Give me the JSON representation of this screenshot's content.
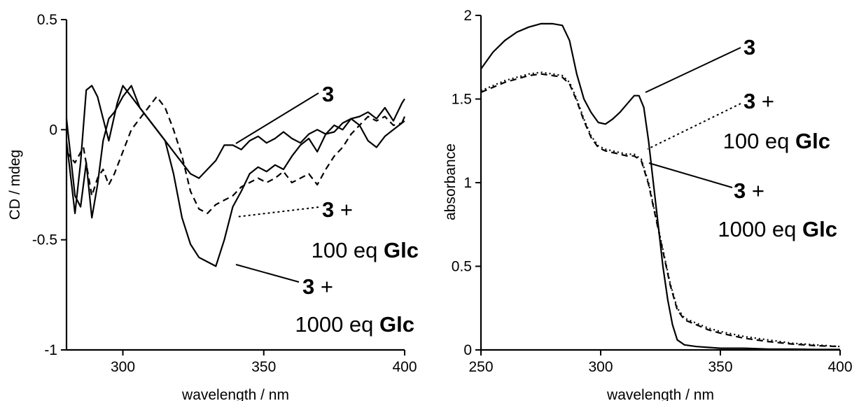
{
  "chart_data": [
    {
      "type": "line",
      "xlabel": "wavelength / nm",
      "ylabel": "CD / mdeg",
      "xlim": [
        280,
        400
      ],
      "ylim": [
        -1,
        0.5
      ],
      "xticks": [
        "300",
        "350",
        "400"
      ],
      "yticks": [
        "0.5",
        "0",
        "-0.5",
        "-1"
      ],
      "grid": false,
      "series": [
        {
          "name": "3",
          "style": "solid",
          "x": [
            280,
            283,
            285,
            287,
            289,
            291,
            293,
            295,
            298,
            300,
            303,
            306,
            309,
            312,
            315,
            318,
            321,
            324,
            327,
            330,
            333,
            336,
            339,
            342,
            345,
            348,
            351,
            354,
            357,
            360,
            363,
            366,
            369,
            372,
            375,
            378,
            381,
            384,
            387,
            390,
            393,
            396,
            399,
            400
          ],
          "y": [
            -0.05,
            -0.38,
            -0.15,
            0.18,
            0.2,
            0.15,
            0.05,
            -0.05,
            0.12,
            0.2,
            0.15,
            0.1,
            0.05,
            0.0,
            -0.05,
            -0.1,
            -0.15,
            -0.2,
            -0.22,
            -0.18,
            -0.14,
            -0.07,
            -0.07,
            -0.09,
            -0.05,
            -0.03,
            -0.06,
            -0.04,
            -0.01,
            -0.04,
            -0.06,
            -0.02,
            0.0,
            -0.02,
            -0.01,
            0.03,
            0.05,
            0.06,
            0.08,
            0.05,
            0.1,
            0.04,
            0.12,
            0.14
          ]
        },
        {
          "name": "3 + 100 eq Glc",
          "style": "dashed",
          "x": [
            280,
            283,
            286,
            289,
            291,
            293,
            295,
            297,
            300,
            303,
            306,
            309,
            312,
            315,
            318,
            321,
            324,
            327,
            330,
            333,
            336,
            339,
            342,
            345,
            348,
            351,
            354,
            357,
            360,
            363,
            366,
            369,
            372,
            375,
            378,
            381,
            384,
            387,
            390,
            393,
            396,
            399,
            400
          ],
          "y": [
            -0.1,
            -0.15,
            -0.08,
            -0.3,
            -0.22,
            -0.18,
            -0.25,
            -0.2,
            -0.1,
            0.0,
            0.05,
            0.1,
            0.15,
            0.1,
            0.0,
            -0.12,
            -0.28,
            -0.36,
            -0.38,
            -0.34,
            -0.32,
            -0.3,
            -0.26,
            -0.24,
            -0.22,
            -0.24,
            -0.22,
            -0.19,
            -0.24,
            -0.22,
            -0.2,
            -0.25,
            -0.18,
            -0.12,
            -0.08,
            -0.02,
            0.02,
            0.06,
            0.04,
            0.06,
            0.02,
            0.03,
            0.04
          ]
        },
        {
          "name": "3 + 1000 eq Glc",
          "style": "solid",
          "x": [
            280,
            283,
            285,
            287,
            289,
            291,
            293,
            295,
            297,
            300,
            303,
            306,
            309,
            312,
            315,
            318,
            321,
            324,
            327,
            330,
            333,
            336,
            339,
            342,
            345,
            348,
            351,
            354,
            357,
            360,
            363,
            366,
            369,
            372,
            375,
            378,
            381,
            384,
            387,
            390,
            393,
            396,
            399,
            400
          ],
          "y": [
            0.05,
            -0.3,
            -0.35,
            -0.15,
            -0.4,
            -0.25,
            -0.05,
            0.05,
            0.08,
            0.15,
            0.2,
            0.1,
            0.05,
            0.0,
            -0.05,
            -0.2,
            -0.4,
            -0.52,
            -0.58,
            -0.6,
            -0.62,
            -0.5,
            -0.35,
            -0.28,
            -0.2,
            -0.17,
            -0.19,
            -0.16,
            -0.18,
            -0.12,
            -0.07,
            -0.04,
            -0.1,
            -0.02,
            0.02,
            0.0,
            0.05,
            0.02,
            -0.05,
            -0.08,
            -0.03,
            0.0,
            0.03,
            0.06
          ]
        }
      ],
      "annotations": [
        {
          "number": "3",
          "rest": "",
          "line2_pre": "",
          "line2_bold": ""
        },
        {
          "number": "3",
          "rest": " +",
          "line2_pre": "100 eq ",
          "line2_bold": "Glc"
        },
        {
          "number": "3",
          "rest": " +",
          "line2_pre": "1000 eq ",
          "line2_bold": "Glc"
        }
      ]
    },
    {
      "type": "line",
      "xlabel": "wavelength / nm",
      "ylabel": "absorbance",
      "xlim": [
        250,
        400
      ],
      "ylim": [
        0,
        2
      ],
      "xticks": [
        "250",
        "300",
        "350",
        "400"
      ],
      "yticks": [
        "2",
        "1.5",
        "1",
        "0.5",
        "0"
      ],
      "grid": false,
      "series": [
        {
          "name": "3",
          "style": "solid",
          "x": [
            250,
            255,
            260,
            265,
            270,
            275,
            280,
            284,
            287,
            290,
            293,
            296,
            299,
            302,
            305,
            308,
            311,
            314,
            316,
            318,
            320,
            322,
            324,
            326,
            328,
            330,
            332,
            335,
            340,
            350,
            360,
            370,
            380,
            390,
            400
          ],
          "y": [
            1.68,
            1.78,
            1.85,
            1.9,
            1.93,
            1.95,
            1.95,
            1.94,
            1.85,
            1.65,
            1.5,
            1.42,
            1.36,
            1.35,
            1.38,
            1.42,
            1.47,
            1.52,
            1.52,
            1.45,
            1.25,
            1.0,
            0.75,
            0.5,
            0.3,
            0.15,
            0.06,
            0.03,
            0.02,
            0.01,
            0.01,
            0.005,
            0.005,
            0.003,
            0.003
          ]
        },
        {
          "name": "3 + 100 eq Glc",
          "style": "dotted",
          "x": [
            250,
            255,
            260,
            265,
            270,
            275,
            280,
            284,
            287,
            290,
            293,
            296,
            299,
            302,
            305,
            308,
            311,
            314,
            317,
            320,
            323,
            326,
            329,
            332,
            335,
            340,
            345,
            350,
            360,
            370,
            380,
            390,
            400
          ],
          "y": [
            1.55,
            1.58,
            1.61,
            1.63,
            1.65,
            1.66,
            1.65,
            1.64,
            1.6,
            1.5,
            1.38,
            1.28,
            1.22,
            1.2,
            1.19,
            1.18,
            1.17,
            1.17,
            1.14,
            1.0,
            0.8,
            0.6,
            0.4,
            0.25,
            0.19,
            0.16,
            0.13,
            0.11,
            0.08,
            0.06,
            0.04,
            0.03,
            0.02
          ]
        },
        {
          "name": "3 + 1000 eq Glc",
          "style": "dashed",
          "x": [
            250,
            255,
            260,
            265,
            270,
            275,
            280,
            284,
            287,
            290,
            293,
            296,
            299,
            302,
            305,
            308,
            311,
            314,
            317,
            320,
            323,
            326,
            329,
            332,
            335,
            340,
            345,
            350,
            360,
            370,
            380,
            390,
            400
          ],
          "y": [
            1.54,
            1.57,
            1.6,
            1.62,
            1.64,
            1.65,
            1.64,
            1.63,
            1.59,
            1.49,
            1.37,
            1.27,
            1.21,
            1.19,
            1.18,
            1.17,
            1.16,
            1.16,
            1.13,
            0.99,
            0.79,
            0.59,
            0.39,
            0.24,
            0.18,
            0.15,
            0.12,
            0.1,
            0.07,
            0.05,
            0.035,
            0.025,
            0.02
          ]
        }
      ],
      "annotations": [
        {
          "number": "3",
          "rest": "",
          "line2_pre": "",
          "line2_bold": ""
        },
        {
          "number": "3",
          "rest": " +",
          "line2_pre": "100 eq ",
          "line2_bold": "Glc"
        },
        {
          "number": "3",
          "rest": " +",
          "line2_pre": "1000 eq ",
          "line2_bold": "Glc"
        }
      ]
    }
  ]
}
